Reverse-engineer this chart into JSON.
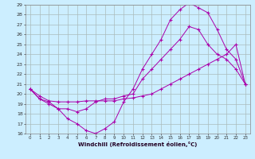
{
  "xlabel": "Windchill (Refroidissement éolien,°C)",
  "bg_color": "#cceeff",
  "grid_color": "#aabbbb",
  "line_color": "#aa00aa",
  "xlim": [
    -0.5,
    23.5
  ],
  "ylim": [
    16,
    29
  ],
  "xticks": [
    0,
    1,
    2,
    3,
    4,
    5,
    6,
    7,
    8,
    9,
    10,
    11,
    12,
    13,
    14,
    15,
    16,
    17,
    18,
    19,
    20,
    21,
    22,
    23
  ],
  "yticks": [
    16,
    17,
    18,
    19,
    20,
    21,
    22,
    23,
    24,
    25,
    26,
    27,
    28,
    29
  ],
  "series1_x": [
    0,
    1,
    2,
    3,
    4,
    5,
    6,
    7,
    8,
    9,
    10,
    11,
    12,
    13,
    14,
    15,
    16,
    17,
    18,
    19,
    20,
    21,
    22,
    23
  ],
  "series1_y": [
    20.5,
    19.5,
    19.0,
    18.5,
    17.5,
    17.0,
    16.3,
    16.0,
    16.5,
    17.2,
    19.2,
    20.5,
    22.5,
    24.0,
    25.5,
    27.5,
    28.5,
    29.2,
    28.7,
    28.2,
    26.5,
    24.5,
    23.5,
    21.0
  ],
  "series2_x": [
    0,
    1,
    2,
    3,
    4,
    5,
    6,
    7,
    8,
    9,
    10,
    11,
    12,
    13,
    14,
    15,
    16,
    17,
    18,
    19,
    20,
    21,
    22,
    23
  ],
  "series2_y": [
    20.5,
    19.5,
    19.2,
    18.5,
    18.5,
    18.2,
    18.5,
    19.2,
    19.5,
    19.5,
    19.8,
    20.0,
    21.5,
    22.5,
    23.5,
    24.5,
    25.5,
    26.8,
    26.5,
    25.0,
    24.0,
    23.5,
    22.5,
    21.0
  ],
  "series3_x": [
    0,
    1,
    2,
    3,
    4,
    5,
    6,
    7,
    8,
    9,
    10,
    11,
    12,
    13,
    14,
    15,
    16,
    17,
    18,
    19,
    20,
    21,
    22,
    23
  ],
  "series3_y": [
    20.5,
    19.8,
    19.3,
    19.2,
    19.2,
    19.2,
    19.3,
    19.3,
    19.3,
    19.3,
    19.5,
    19.6,
    19.8,
    20.0,
    20.5,
    21.0,
    21.5,
    22.0,
    22.5,
    23.0,
    23.5,
    24.0,
    25.0,
    21.0
  ]
}
